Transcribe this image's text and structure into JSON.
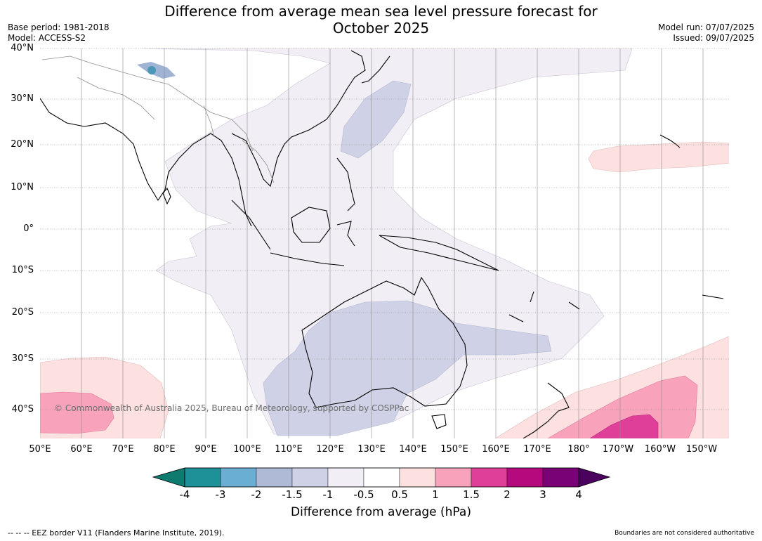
{
  "title_line1": "Difference from average mean sea level pressure forecast for",
  "title_line2": "October 2025",
  "meta": {
    "base_period": "Base period: 1981-2018",
    "model": "Model: ACCESS-S2",
    "model_run": "Model run: 07/07/2025",
    "issued": "Issued: 09/07/2025"
  },
  "lat_labels": [
    "40°N",
    "30°N",
    "20°N",
    "10°N",
    "0°",
    "10°S",
    "20°S",
    "30°S",
    "40°S"
  ],
  "lon_labels": [
    "50°E",
    "60°E",
    "70°E",
    "80°E",
    "90°E",
    "100°E",
    "110°E",
    "120°E",
    "130°E",
    "140°E",
    "150°E",
    "160°E",
    "170°E",
    "180°",
    "170°W",
    "160°W",
    "150°W"
  ],
  "copyright": "© Commonwealth of Australia 2025, Bureau of Meteorology, supported by COSPPac",
  "colorbar": {
    "labels": [
      "-4",
      "-3",
      "-2",
      "-1.5",
      "-1",
      "-0.5",
      "0.5",
      "1",
      "1.5",
      "2",
      "3",
      "4"
    ],
    "colors": [
      "#0e7a70",
      "#1e9098",
      "#6aaed3",
      "#aebad6",
      "#cfd2e6",
      "#f2eef5",
      "#ffffff",
      "#fde0e0",
      "#f8a2bb",
      "#df3f98",
      "#b5097e",
      "#7a0277",
      "#4a025e"
    ],
    "title": "Difference from average (hPa)"
  },
  "footer_left": "--  --  -- EEZ border V11 (Flanders Marine Institute, 2019).",
  "footer_right": "Boundaries are not considered authoritative"
}
